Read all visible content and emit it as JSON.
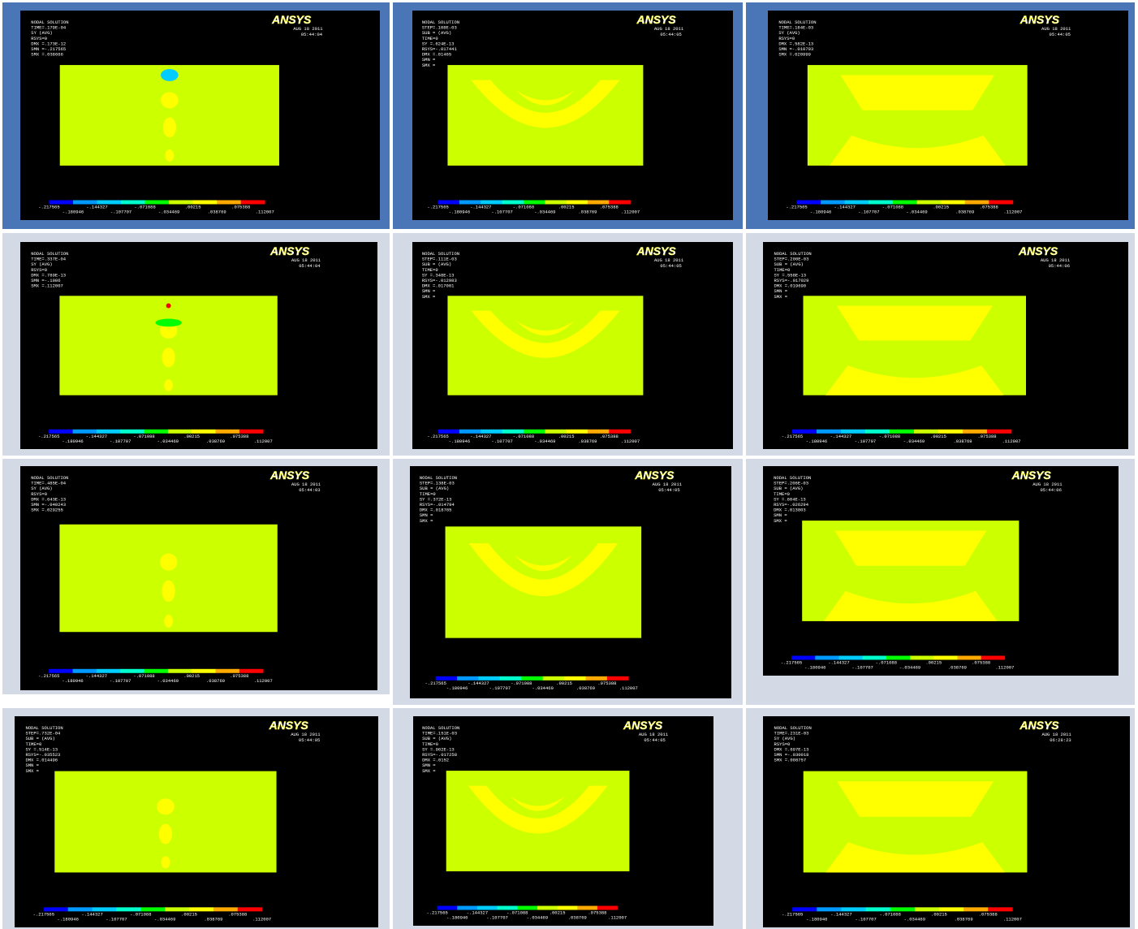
{
  "legend": {
    "labels": [
      "-.217565",
      "-.180946",
      "-.144327",
      "-.107707",
      "-.071088",
      "-.034469",
      ".00215",
      ".038769",
      ".075388",
      ".112007"
    ],
    "colors": [
      "#0000ff",
      "#0099ff",
      "#00ccff",
      "#00ffcc",
      "#00ff00",
      "#ccff00",
      "#ffff00",
      "#ffaa00",
      "#ff0000"
    ]
  },
  "panels": [
    {
      "logo": "ANSYS",
      "date": "AUG 18 2011",
      "time": "05:44:04",
      "info": [
        "NODAL SOLUTION",
        "TIME=.179E-04",
        "SY       (AVG)",
        "RSYS=0",
        "DMX =.173E-12",
        "SMN =-.217565",
        "SMX =.038666"
      ]
    },
    {
      "logo": "ANSYS",
      "date": "AUG 18 2011",
      "time": "05:44:05",
      "info": [
        "NODAL SOLUTION",
        "STEP=.108E-03",
        "SUB =    (AVG)",
        "TIME=0",
        "SY   =.624E-13",
        "RSYS=-.017441",
        "DMX =.01465",
        "SMN =",
        "SMX ="
      ]
    },
    {
      "logo": "ANSYS",
      "date": "AUG 18 2011",
      "time": "05:44:05",
      "info": [
        "NODAL SOLUTION",
        "TIME=.184E-03",
        "SY       (AVG)",
        "RSYS=0",
        "DMX =.582E-13",
        "SMN =-.010793",
        "SMX =.020999"
      ]
    },
    {
      "logo": "ANSYS",
      "date": "AUG 18 2011",
      "time": "05:44:04",
      "info": [
        "NODAL SOLUTION",
        "TIME=.337E-04",
        "SY       (AVG)",
        "RSYS=0",
        "DMX =.789E-13",
        "SMN =-.1086",
        "SMX =.112007"
      ]
    },
    {
      "logo": "ANSYS",
      "date": "AUG 18 2011",
      "time": "05:44:05",
      "info": [
        "NODAL SOLUTION",
        "STEP=.111E-03",
        "SUB =    (AVG)",
        "TIME=0",
        "SY   =.348E-13",
        "RSYS=-.012983",
        "DMX =.017001",
        "SMN =",
        "SMX ="
      ]
    },
    {
      "logo": "ANSYS",
      "date": "AUG 18 2011",
      "time": "05:44:06",
      "info": [
        "NODAL SOLUTION",
        "STEP=.200E-03",
        "SUB =    (AVG)",
        "TIME=0",
        "SY   =.558E-13",
        "RSYS=-.017029",
        "DMX =.019690",
        "SMN =",
        "SMX ="
      ]
    },
    {
      "logo": "ANSYS",
      "date": "AUG 18 2011",
      "time": "05:44:03",
      "info": [
        "NODAL SOLUTION",
        "TIME=.485E-04",
        "SY       (AVG)",
        "RSYS=0",
        "DMX =.643E-13",
        "SMN =-.040243",
        "SMX =.029255"
      ]
    },
    {
      "logo": "ANSYS",
      "date": "AUG 18 2011",
      "time": "05:44:05",
      "info": [
        "NODAL SOLUTION",
        "STEP=.138E-03",
        "SUB =    (AVG)",
        "TIME=0",
        "SY   =.372E-13",
        "RSYS=-.014794",
        "DMX =.018765",
        "SMN =",
        "SMX ="
      ]
    },
    {
      "logo": "ANSYS",
      "date": "AUG 18 2011",
      "time": "05:44:06",
      "info": [
        "NODAL SOLUTION",
        "STEP=.206E-03",
        "SUB =    (AVG)",
        "TIME=0",
        "SY   =.604E-13",
        "RSYS=-.026294",
        "DMX =.013803",
        "SMN =",
        "SMX ="
      ]
    },
    {
      "logo": "ANSYS",
      "date": "AUG 18 2011",
      "time": "05:44:05",
      "info": [
        "NODAL SOLUTION",
        "STEP=.732E-04",
        "SUB =    (AVG)",
        "TIME=0",
        "SY   =.514E-13",
        "RSYS=-.035523",
        "DMX =.014496",
        "SMN =",
        "SMX ="
      ]
    },
    {
      "logo": "ANSYS",
      "date": "AUG 18 2011",
      "time": "05:44:05",
      "info": [
        "NODAL SOLUTION",
        "TIME=.151E-03",
        "SUB =    (AVG)",
        "TIME=0",
        "SY   =.962E-13",
        "RSYS=-.017258",
        "DMX =.0152",
        "SMN =",
        "SMX ="
      ]
    },
    {
      "logo": "ANSYS",
      "date": "AUG 18 2011",
      "time": "06:28:23",
      "info": [
        "NODAL SOLUTION",
        "TIME=.231E-03",
        "SY       (AVG)",
        "RSYS=0",
        "DMX =.697E-13",
        "SMN =-.030018",
        "SMX =.008757"
      ]
    }
  ]
}
